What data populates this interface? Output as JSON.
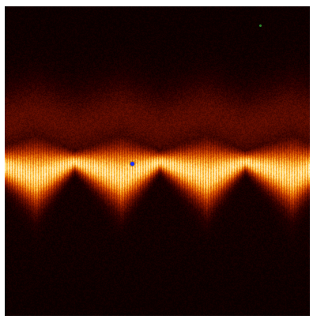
{
  "image": {
    "type": "thermal-intensity-map",
    "colormap": [
      "#000000",
      "#3a0000",
      "#8a1500",
      "#d44800",
      "#ff9a10",
      "#ffe060",
      "#fff6c8"
    ],
    "background_color": "#0a0000",
    "band": {
      "shape": "sinusoidal-wave",
      "periods_visible": 3.5,
      "peak_color": "#fff2b0"
    },
    "markers": [
      {
        "name": "blue-dot",
        "color": "#1b2bff"
      },
      {
        "name": "green-dot",
        "color": "#2a8a2a"
      }
    ]
  }
}
